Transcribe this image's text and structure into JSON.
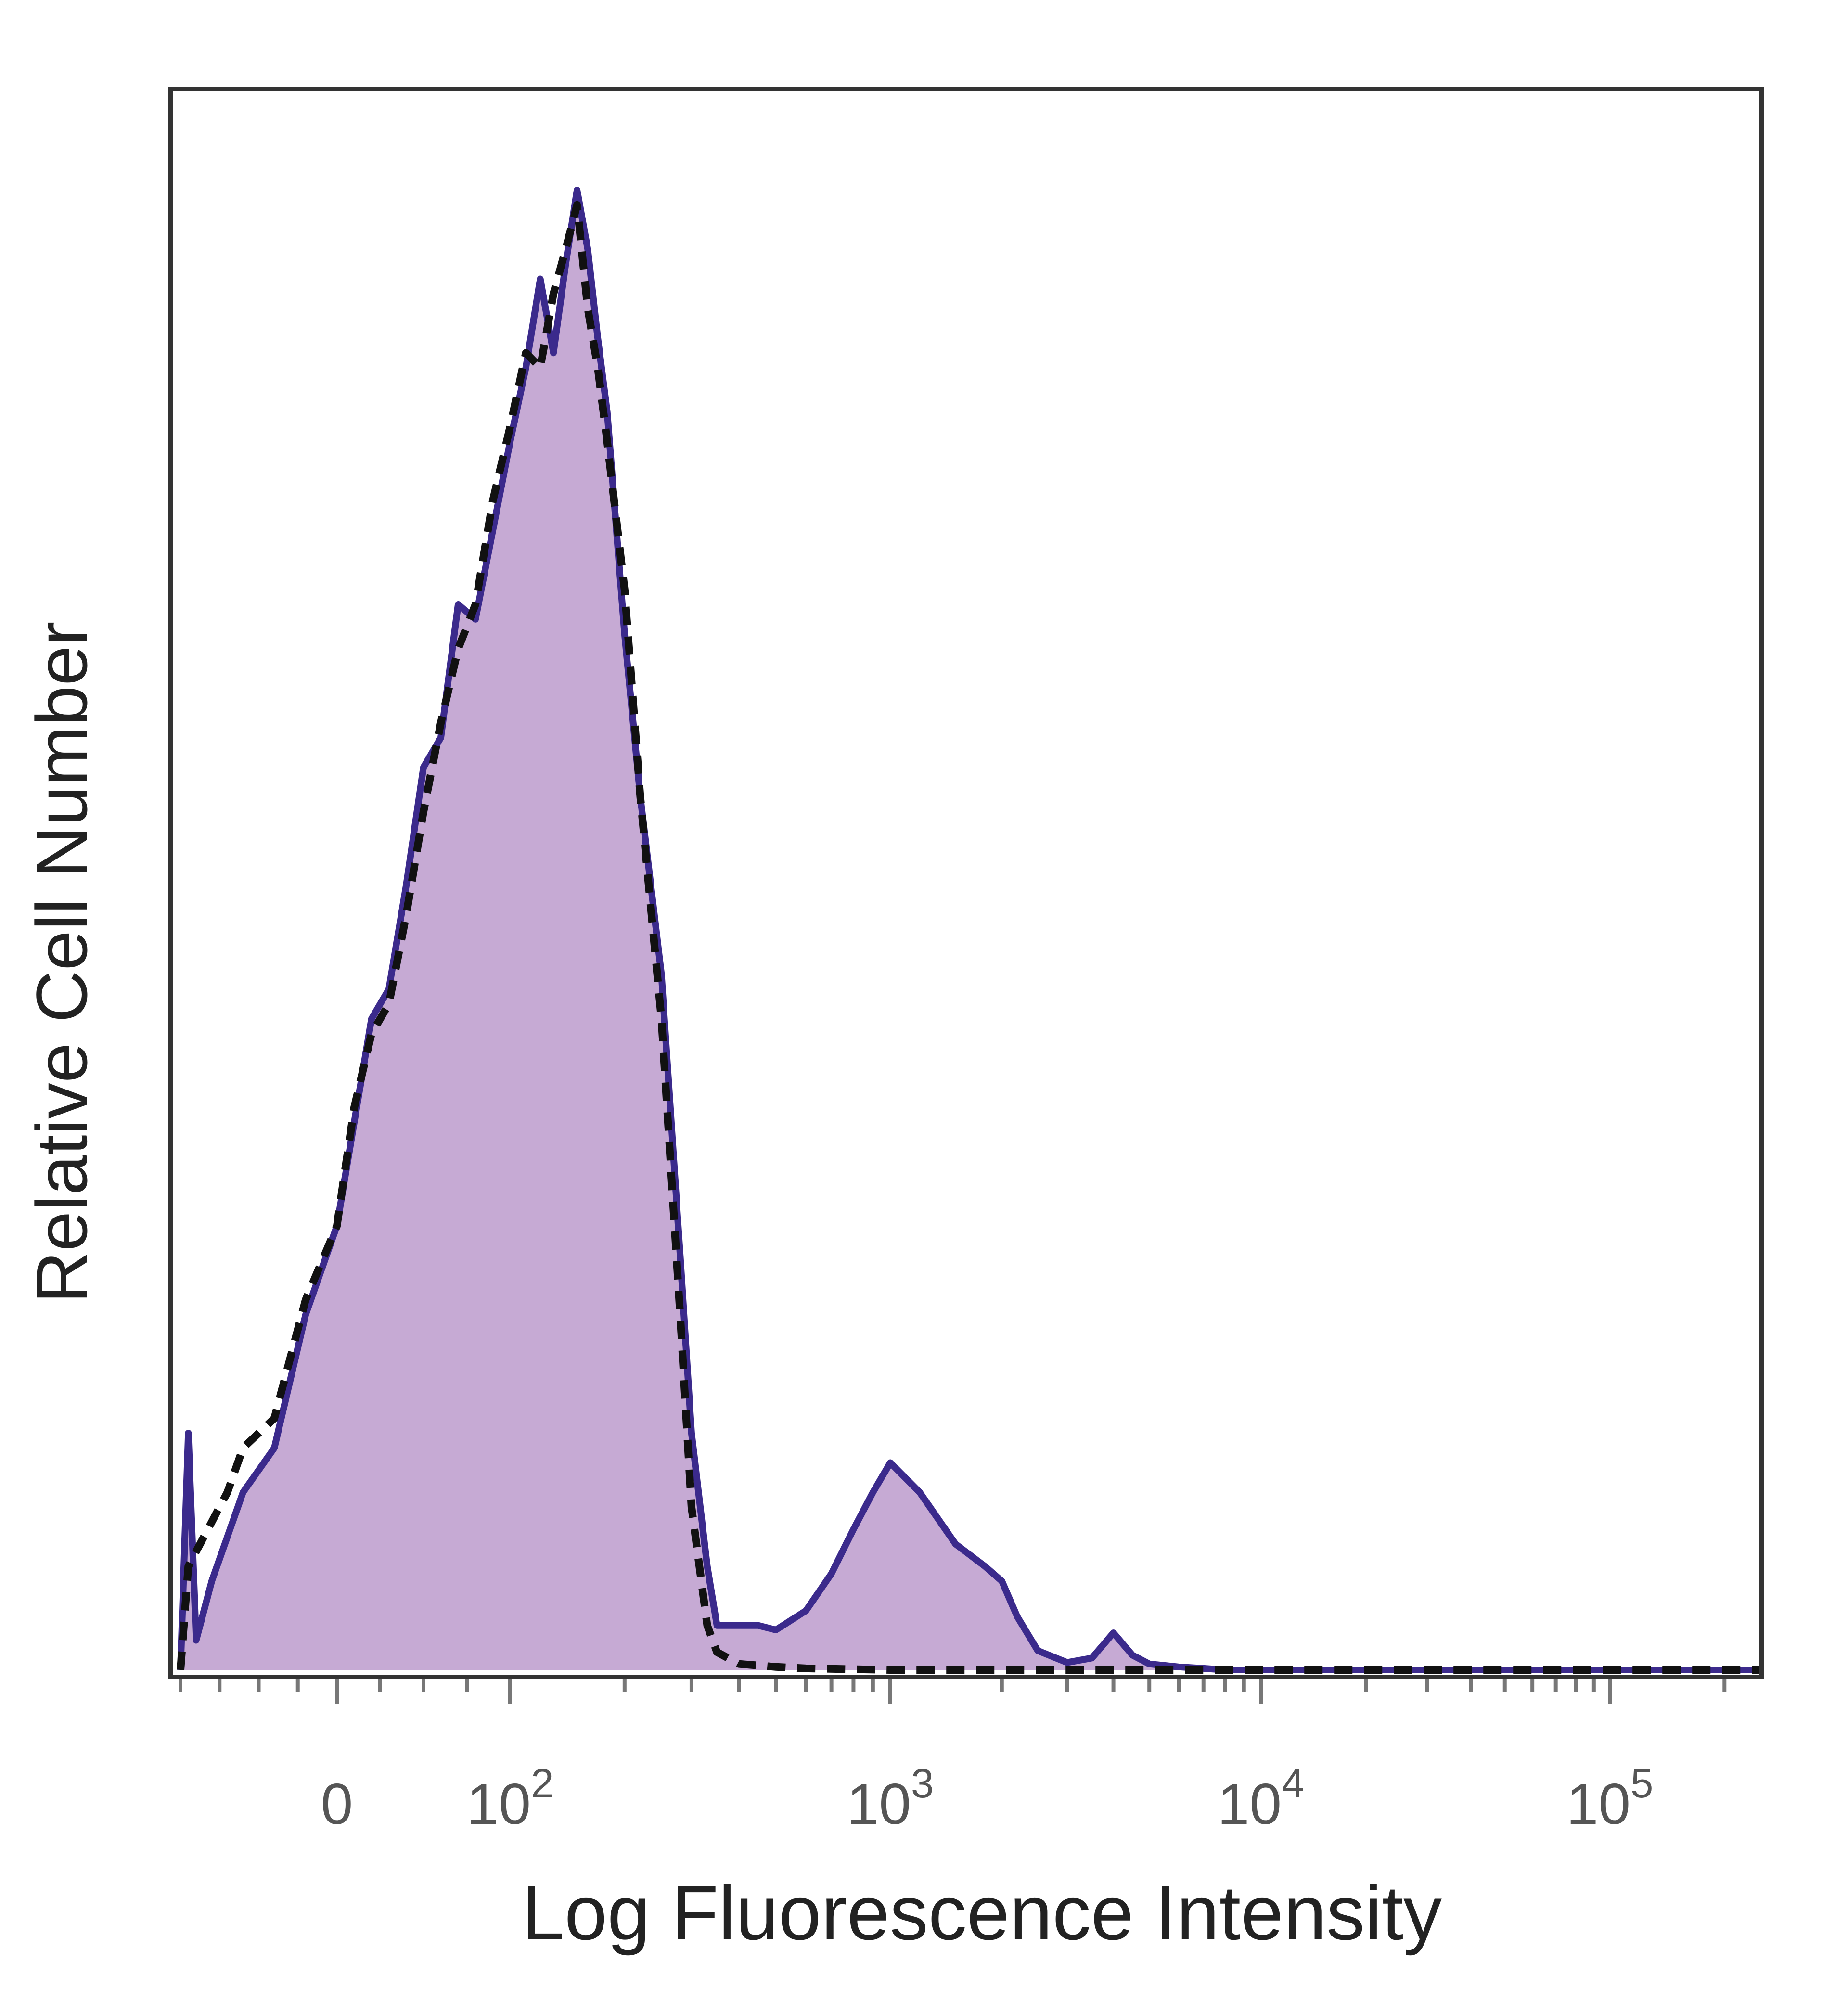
{
  "colors": {
    "fill": "#c6aad4",
    "stained_line": "#3b2a8c",
    "isotype_line": "#111111",
    "frame": "#333333"
  },
  "chart_data": {
    "type": "area",
    "title": "",
    "xlabel": "Log Fluorescence Intensity",
    "ylabel": "Relative Cell Number",
    "x_scale": "biexponential",
    "xlim": [
      -100,
      250000
    ],
    "ylim": [
      0,
      1
    ],
    "grid": false,
    "legend": "none",
    "x_ticks": [
      {
        "value": 0,
        "base": "0",
        "exp": ""
      },
      {
        "value": 100,
        "base": "10",
        "exp": "2"
      },
      {
        "value": 1000,
        "base": "10",
        "exp": "3"
      },
      {
        "value": 10000,
        "base": "10",
        "exp": "4"
      },
      {
        "value": 100000,
        "base": "10",
        "exp": "5"
      }
    ],
    "series": [
      {
        "style": "filled-solid",
        "x": [
          -100,
          -95,
          -90,
          -80,
          -70,
          -60,
          -40,
          -20,
          0,
          10,
          20,
          30,
          40,
          50,
          60,
          70,
          80,
          90,
          100,
          110,
          120,
          130,
          140,
          150,
          160,
          170,
          180,
          200,
          220,
          250,
          280,
          300,
          330,
          350,
          400,
          450,
          500,
          600,
          700,
          800,
          900,
          1000,
          1200,
          1500,
          1800,
          2000,
          2200,
          2500,
          2800,
          3000,
          3500,
          4000,
          4500,
          5000,
          6000,
          7000,
          8000,
          9000,
          10000,
          12000,
          14000,
          16000,
          20000,
          50000,
          100000,
          200000,
          250000
        ],
        "y": [
          0,
          0.16,
          0.02,
          0.06,
          0.09,
          0.12,
          0.15,
          0.24,
          0.3,
          0.37,
          0.44,
          0.46,
          0.53,
          0.61,
          0.63,
          0.72,
          0.71,
          0.77,
          0.83,
          0.88,
          0.94,
          0.89,
          0.95,
          1.0,
          0.96,
          0.9,
          0.85,
          0.7,
          0.59,
          0.47,
          0.28,
          0.16,
          0.07,
          0.03,
          0.03,
          0.03,
          0.027,
          0.04,
          0.065,
          0.095,
          0.12,
          0.14,
          0.12,
          0.085,
          0.07,
          0.06,
          0.036,
          0.013,
          0.008,
          0.005,
          0.008,
          0.025,
          0.01,
          0.004,
          0.002,
          0.001,
          0,
          0,
          0,
          0,
          0,
          0,
          0,
          0,
          0,
          0,
          0
        ]
      },
      {
        "style": "dashed",
        "x": [
          -100,
          -95,
          -90,
          -80,
          -70,
          -60,
          -40,
          -20,
          0,
          10,
          20,
          30,
          40,
          50,
          60,
          70,
          80,
          90,
          100,
          110,
          120,
          130,
          140,
          150,
          160,
          170,
          180,
          200,
          220,
          250,
          280,
          300,
          330,
          350,
          400,
          450,
          500,
          600,
          1000,
          10000,
          250000
        ],
        "y": [
          0,
          0.07,
          0.08,
          0.1,
          0.12,
          0.15,
          0.17,
          0.25,
          0.3,
          0.38,
          0.43,
          0.45,
          0.51,
          0.58,
          0.64,
          0.69,
          0.72,
          0.79,
          0.84,
          0.89,
          0.88,
          0.93,
          0.96,
          0.99,
          0.92,
          0.88,
          0.83,
          0.73,
          0.59,
          0.44,
          0.24,
          0.11,
          0.03,
          0.012,
          0.004,
          0.003,
          0.002,
          0.001,
          0,
          0,
          0
        ]
      }
    ]
  }
}
